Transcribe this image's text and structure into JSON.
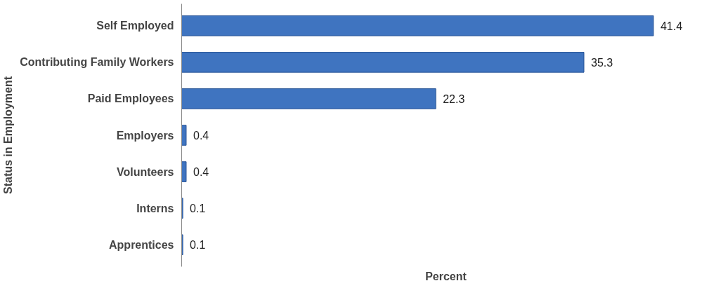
{
  "chart_data": {
    "type": "bar",
    "orientation": "horizontal",
    "xlabel": "Percent",
    "ylabel": "Status in Employment",
    "categories": [
      "Self Employed",
      "Contributing Family Workers",
      "Paid Employees",
      "Employers",
      "Volunteers",
      "Interns",
      "Apprentices"
    ],
    "values": [
      41.4,
      35.3,
      22.3,
      0.4,
      0.4,
      0.1,
      0.1
    ],
    "color": "#3f74c0",
    "data_labels": true,
    "grid": false
  }
}
